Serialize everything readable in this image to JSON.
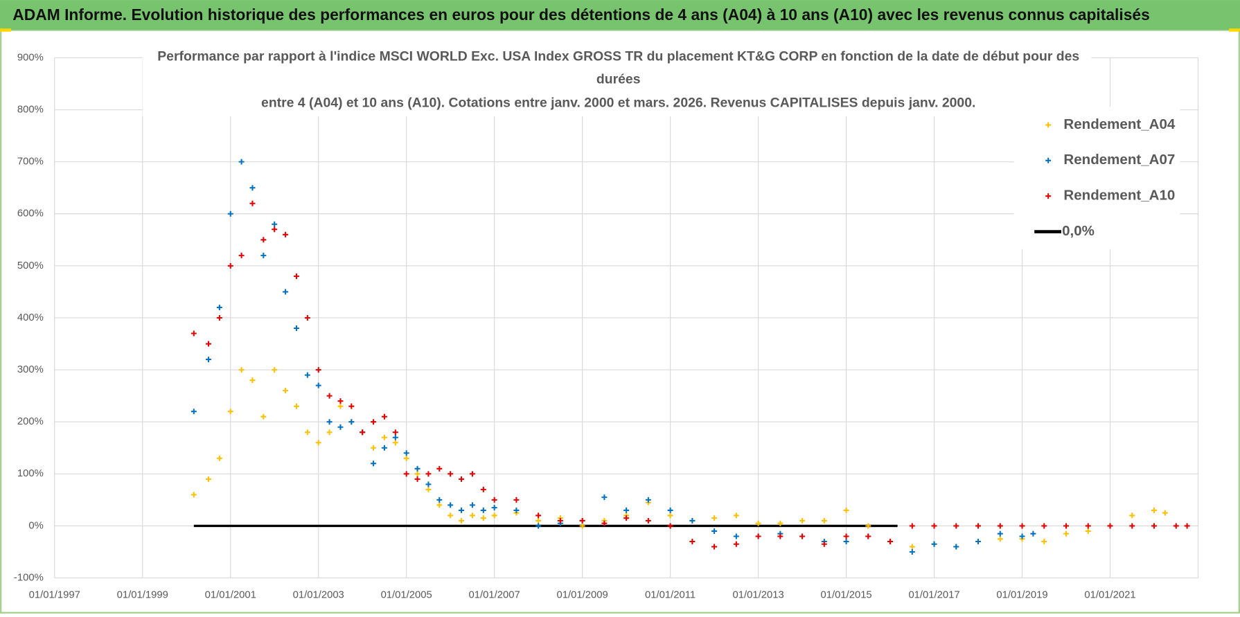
{
  "chart_data": {
    "type": "scatter",
    "title": "ADAM Informe. Evolution historique des performances en euros pour des détentions de 4 ans (A04) à 10 ans (A10) avec les revenus connus capitalisés",
    "subtitle": [
      "Performance par rapport à l'indice MSCI WORLD Exc. USA Index GROSS TR  du placement KT&G CORP en fonction de la date de début pour des",
      "durées",
      "entre 4 (A04) et 10 ans (A10). Cotations entre janv. 2000 et mars. 2026. Revenus CAPITALISES depuis janv. 2000."
    ],
    "xlim": [
      "01/01/1997",
      "01/01/2023"
    ],
    "xticks": [
      "01/01/1997",
      "01/01/1999",
      "01/01/2001",
      "01/01/2003",
      "01/01/2005",
      "01/01/2007",
      "01/01/2009",
      "01/01/2011",
      "01/01/2013",
      "01/01/2015",
      "01/01/2017",
      "01/01/2019",
      "01/01/2021"
    ],
    "ylim": [
      -100,
      900
    ],
    "yticks": [
      {
        "value": -100,
        "label": "-100%"
      },
      {
        "value": 0,
        "label": "0%"
      },
      {
        "value": 100,
        "label": "100%"
      },
      {
        "value": 200,
        "label": "200%"
      },
      {
        "value": 300,
        "label": "300%"
      },
      {
        "value": 400,
        "label": "400%"
      },
      {
        "value": 500,
        "label": "500%"
      },
      {
        "value": 600,
        "label": "600%"
      },
      {
        "value": 700,
        "label": "700%"
      },
      {
        "value": 800,
        "label": "800%"
      },
      {
        "value": 900,
        "label": "900%"
      }
    ],
    "grid": true,
    "legend": "top-right",
    "series": [
      {
        "name": "Rendement_A04",
        "color": "#ffc000",
        "x": [
          "01/03/2000",
          "01/07/2000",
          "01/10/2000",
          "01/01/2001",
          "01/04/2001",
          "01/07/2001",
          "01/10/2001",
          "01/01/2002",
          "01/04/2002",
          "01/07/2002",
          "01/10/2002",
          "01/01/2003",
          "01/04/2003",
          "01/07/2003",
          "01/10/2003",
          "01/01/2004",
          "01/04/2004",
          "01/07/2004",
          "01/10/2004",
          "01/01/2005",
          "01/04/2005",
          "01/07/2005",
          "01/10/2005",
          "01/01/2006",
          "01/04/2006",
          "01/07/2006",
          "01/10/2006",
          "01/01/2007",
          "01/07/2007",
          "01/01/2008",
          "01/07/2008",
          "01/01/2009",
          "01/07/2009",
          "01/01/2010",
          "01/07/2010",
          "01/01/2011",
          "01/07/2011",
          "01/01/2012",
          "01/07/2012",
          "01/01/2013",
          "01/07/2013",
          "01/01/2014",
          "01/07/2014",
          "01/01/2015",
          "01/07/2015",
          "01/01/2016",
          "01/07/2016",
          "01/01/2017",
          "01/07/2017",
          "01/01/2018",
          "01/07/2018",
          "01/01/2019",
          "01/07/2019",
          "01/01/2020",
          "01/07/2020",
          "01/01/2021",
          "01/07/2021",
          "01/01/2022",
          "01/04/2022"
        ],
        "values": [
          60,
          90,
          130,
          220,
          300,
          280,
          210,
          300,
          260,
          230,
          180,
          160,
          180,
          230,
          200,
          180,
          150,
          170,
          160,
          130,
          100,
          70,
          40,
          20,
          10,
          20,
          15,
          20,
          25,
          10,
          15,
          0,
          10,
          20,
          45,
          20,
          10,
          15,
          20,
          5,
          5,
          10,
          10,
          30,
          0,
          -30,
          -40,
          -35,
          -40,
          -30,
          -25,
          -25,
          -30,
          -15,
          -10,
          0,
          20,
          30,
          25
        ]
      },
      {
        "name": "Rendement_A07",
        "color": "#0070c0",
        "x": [
          "01/03/2000",
          "01/07/2000",
          "01/10/2000",
          "01/01/2001",
          "01/04/2001",
          "01/07/2001",
          "01/10/2001",
          "01/01/2002",
          "01/04/2002",
          "01/07/2002",
          "01/10/2002",
          "01/01/2003",
          "01/04/2003",
          "01/07/2003",
          "01/10/2003",
          "01/01/2004",
          "01/04/2004",
          "01/07/2004",
          "01/10/2004",
          "01/01/2005",
          "01/04/2005",
          "01/07/2005",
          "01/10/2005",
          "01/01/2006",
          "01/04/2006",
          "01/07/2006",
          "01/10/2006",
          "01/01/2007",
          "01/07/2007",
          "01/01/2008",
          "01/07/2008",
          "01/01/2009",
          "01/07/2009",
          "01/01/2010",
          "01/07/2010",
          "01/01/2011",
          "01/07/2011",
          "01/01/2012",
          "01/07/2012",
          "01/01/2013",
          "01/07/2013",
          "01/01/2014",
          "01/07/2014",
          "01/01/2015",
          "01/07/2015",
          "01/01/2016",
          "01/07/2016",
          "01/01/2017",
          "01/07/2017",
          "01/01/2018",
          "01/07/2018",
          "01/01/2019",
          "01/04/2019"
        ],
        "values": [
          220,
          320,
          420,
          600,
          700,
          650,
          520,
          580,
          450,
          380,
          290,
          270,
          200,
          190,
          200,
          180,
          120,
          150,
          170,
          140,
          110,
          80,
          50,
          40,
          30,
          40,
          30,
          35,
          30,
          0,
          5,
          10,
          55,
          30,
          50,
          30,
          10,
          -10,
          -20,
          -20,
          -15,
          -20,
          -30,
          -30,
          -20,
          -30,
          -50,
          -35,
          -40,
          -30,
          -15,
          -20,
          -15
        ]
      },
      {
        "name": "Rendement_A10",
        "color": "#e00000",
        "x": [
          "01/03/2000",
          "01/07/2000",
          "01/10/2000",
          "01/01/2001",
          "01/04/2001",
          "01/07/2001",
          "01/10/2001",
          "01/01/2002",
          "01/04/2002",
          "01/07/2002",
          "01/10/2002",
          "01/01/2003",
          "01/04/2003",
          "01/07/2003",
          "01/10/2003",
          "01/01/2004",
          "01/04/2004",
          "01/07/2004",
          "01/10/2004",
          "01/01/2005",
          "01/04/2005",
          "01/07/2005",
          "01/10/2005",
          "01/01/2006",
          "01/04/2006",
          "01/07/2006",
          "01/10/2006",
          "01/01/2007",
          "01/07/2007",
          "01/01/2008",
          "01/07/2008",
          "01/01/2009",
          "01/07/2009",
          "01/01/2010",
          "01/07/2010",
          "01/01/2011",
          "01/07/2011",
          "01/01/2012",
          "01/07/2012",
          "01/01/2013",
          "01/07/2013",
          "01/01/2014",
          "01/07/2014",
          "01/01/2015",
          "01/07/2015",
          "01/01/2016",
          "01/07/2016",
          "01/01/2017",
          "01/07/2017",
          "01/01/2018",
          "01/07/2018",
          "01/01/2019",
          "01/07/2019",
          "01/01/2020",
          "01/07/2020",
          "01/01/2021",
          "01/07/2021",
          "01/01/2022",
          "01/07/2022",
          "01/10/2022"
        ],
        "values": [
          370,
          350,
          400,
          500,
          520,
          620,
          550,
          570,
          560,
          480,
          400,
          300,
          250,
          240,
          230,
          180,
          200,
          210,
          180,
          100,
          90,
          100,
          110,
          100,
          90,
          100,
          70,
          50,
          50,
          20,
          10,
          10,
          5,
          15,
          10,
          0,
          -30,
          -40,
          -35,
          -20,
          -20,
          -20,
          -35,
          -20,
          -20,
          -30,
          0,
          0,
          0,
          0,
          0,
          0,
          0,
          0,
          0,
          0,
          0,
          0,
          0,
          0
        ]
      },
      {
        "name": "0,0%",
        "color": "#000000",
        "type": "line",
        "x": [
          "01/03/2000",
          "01/03/2016"
        ],
        "values": [
          0,
          0
        ]
      }
    ]
  }
}
